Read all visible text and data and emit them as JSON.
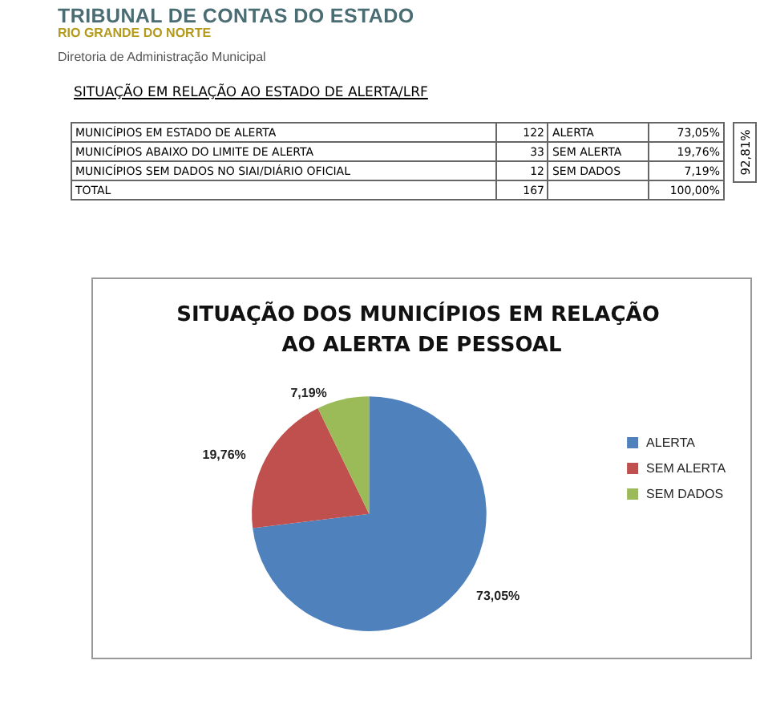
{
  "chart_data": {
    "type": "pie",
    "title": "SITUAÇÃO DOS MUNICÍPIOS EM RELAÇÃO AO ALERTA DE PESSOAL",
    "categories": [
      "ALERTA",
      "SEM ALERTA",
      "SEM DADOS"
    ],
    "values": [
      73.05,
      19.76,
      7.19
    ],
    "colors": [
      "#4f81bd",
      "#c0504d",
      "#9bbb59"
    ],
    "value_labels": [
      "73,05%",
      "19,76%",
      "7,19%"
    ],
    "legend": "right",
    "annotations": [
      "TRIBUNAL DE CONTAS DO ESTADO",
      "RIO GRANDE DO NORTE",
      "Diretoria de Administração Municipal",
      "SITUAÇÃO EM RELAÇÃO AO ESTADO DE ALERTA/LRF",
      "MUNICÍPIOS EM ESTADO DE ALERTA",
      "122",
      "ALERTA",
      "73,05%",
      "MUNICÍPIOS ABAIXO DO LIMITE DE ALERTA",
      "33",
      "SEM ALERTA",
      "19,76%",
      "MUNICÍPIOS SEM DADOS NO SIAI/DIÁRIO OFICIAL",
      "12",
      "SEM DADOS",
      "7,19%",
      "TOTAL",
      "167",
      "100,00%",
      "92,81%"
    ]
  }
}
